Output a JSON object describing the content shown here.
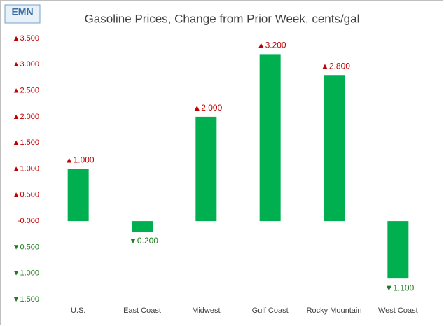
{
  "logo": "EMN",
  "chart_data": {
    "type": "bar",
    "title": "Gasoline Prices, Change from Prior Week, cents/gal",
    "categories": [
      "U.S.",
      "East Coast",
      "Midwest",
      "Gulf Coast",
      "Rocky Mountain",
      "West Coast"
    ],
    "values": [
      1.0,
      -0.2,
      2.0,
      3.2,
      2.8,
      -1.1
    ],
    "value_labels": [
      "▲1.000",
      "▼0.200",
      "▲2.000",
      "▲3.200",
      "▲2.800",
      "▼1.100"
    ],
    "color": "#00b050",
    "up_color": "#c00000",
    "down_color": "#1e7b1e",
    "ylim": [
      -1.5,
      3.5
    ],
    "yticks": [
      {
        "value": -1.5,
        "label": "▼1.500"
      },
      {
        "value": -1.0,
        "label": "▼1.000"
      },
      {
        "value": -0.5,
        "label": "▼0.500"
      },
      {
        "value": 0,
        "label": "-0.000"
      },
      {
        "value": 0.5,
        "label": "▲0.500"
      },
      {
        "value": 1.0,
        "label": "▲1.000"
      },
      {
        "value": 1.5,
        "label": "▲1.500"
      },
      {
        "value": 2.0,
        "label": "▲2.000"
      },
      {
        "value": 2.5,
        "label": "▲2.500"
      },
      {
        "value": 3.0,
        "label": "▲3.000"
      },
      {
        "value": 3.5,
        "label": "▲3.500"
      }
    ],
    "grid": false
  }
}
